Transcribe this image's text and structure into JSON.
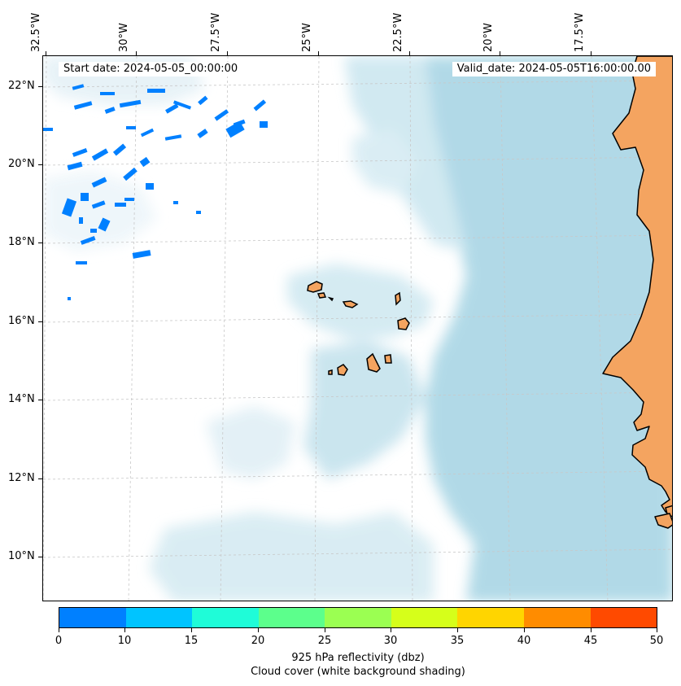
{
  "map": {
    "start_date": "Start date: 2024-05-05_00:00:00",
    "valid_date": "Valid_date: 2024-05-05T16:00:00.00",
    "lon_labels": [
      "32.5°W",
      "30°W",
      "27.5°W",
      "25°W",
      "22.5°W",
      "20°W",
      "17.5°W"
    ],
    "lat_labels": [
      "22°N",
      "20°N",
      "18°N",
      "16°N",
      "14°N",
      "12°N",
      "10°N"
    ],
    "land_color": "#f4a460",
    "cloud_color": "#add8e6",
    "reflectivity_color": "#0080ff",
    "gridlines": true
  },
  "colorbar": {
    "ticks": [
      "0",
      "10",
      "15",
      "20",
      "25",
      "30",
      "35",
      "40",
      "45",
      "50"
    ],
    "colors": [
      "#0080ff",
      "#00c4ff",
      "#1ffcd8",
      "#5cff8c",
      "#9bff52",
      "#d6ff1a",
      "#ffd500",
      "#ff8c00",
      "#ff4a00"
    ],
    "label": "925 hPa reflectivity (dbz)",
    "sublabel": "Cloud cover (white background shading)"
  }
}
